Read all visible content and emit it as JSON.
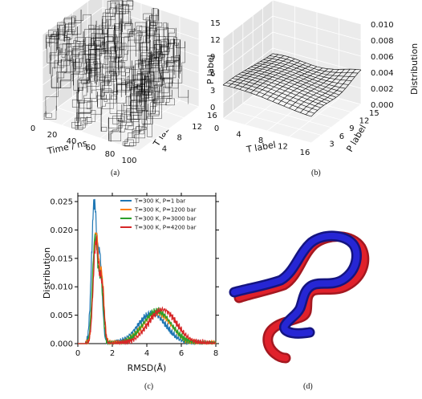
{
  "captions": {
    "a": "(a)",
    "b": "(b)",
    "c": "(c)",
    "d": "(d)"
  },
  "chart_data": [
    {
      "panel": "a",
      "type": "surface3d",
      "xlabel": "Time / ns",
      "ylabel": "T label",
      "zlabel": "P label",
      "x_ticks": [
        "0",
        "20",
        "40",
        "60",
        "80",
        "100"
      ],
      "y_ticks": [
        "4",
        "8",
        "12",
        "16"
      ],
      "z_ticks": [
        "0",
        "3",
        "6",
        "9",
        "12",
        "15"
      ],
      "xlim": [
        0,
        100
      ],
      "ylim": [
        0,
        16
      ],
      "zlim": [
        0,
        15
      ],
      "grid": true,
      "note": "dense random-walk trajectory over (T label, P label)"
    },
    {
      "panel": "b",
      "type": "surface3d",
      "xlabel": "T label",
      "ylabel": "P label",
      "zlabel": "Distribution",
      "x_ticks": [
        "0",
        "4",
        "8",
        "12",
        "16"
      ],
      "y_ticks": [
        "3",
        "6",
        "9",
        "12",
        "15"
      ],
      "z_ticks": [
        "0.000",
        "0.002",
        "0.004",
        "0.006",
        "0.008",
        "0.010"
      ],
      "xlim": [
        0,
        16
      ],
      "ylim": [
        0,
        15
      ],
      "zlim": [
        0,
        0.01
      ],
      "surface_level": 0.0036,
      "grid": true
    },
    {
      "panel": "c",
      "type": "line",
      "xlabel": "RMSD(Å)",
      "ylabel": "Distribution",
      "xlim": [
        0,
        8
      ],
      "ylim": [
        0,
        0.026
      ],
      "x_ticks": [
        "0",
        "2",
        "4",
        "6",
        "8"
      ],
      "y_ticks": [
        "0.000",
        "0.005",
        "0.010",
        "0.015",
        "0.020",
        "0.025"
      ],
      "legend_position": "top-right",
      "series": [
        {
          "name": "T=300 K, P=1 bar",
          "color": "#1f77b4",
          "peaks": [
            {
              "x": 0.95,
              "y": 0.0245
            },
            {
              "x": 4.3,
              "y": 0.0053
            }
          ]
        },
        {
          "name": "T=300 K, P=1200 bar",
          "color": "#ff7f0e",
          "peaks": [
            {
              "x": 1.05,
              "y": 0.0195
            },
            {
              "x": 4.6,
              "y": 0.0055
            }
          ]
        },
        {
          "name": "T=300 K, P=3000 bar",
          "color": "#2ca02c",
          "peaks": [
            {
              "x": 1.0,
              "y": 0.0185
            },
            {
              "x": 4.6,
              "y": 0.0057
            }
          ]
        },
        {
          "name": "T=300 K, P=4200 bar",
          "color": "#d62728",
          "peaks": [
            {
              "x": 1.05,
              "y": 0.0178
            },
            {
              "x": 4.9,
              "y": 0.006
            }
          ]
        }
      ]
    }
  ],
  "structure": {
    "colors": {
      "red": "#e0212b",
      "blue": "#2626d4"
    }
  }
}
